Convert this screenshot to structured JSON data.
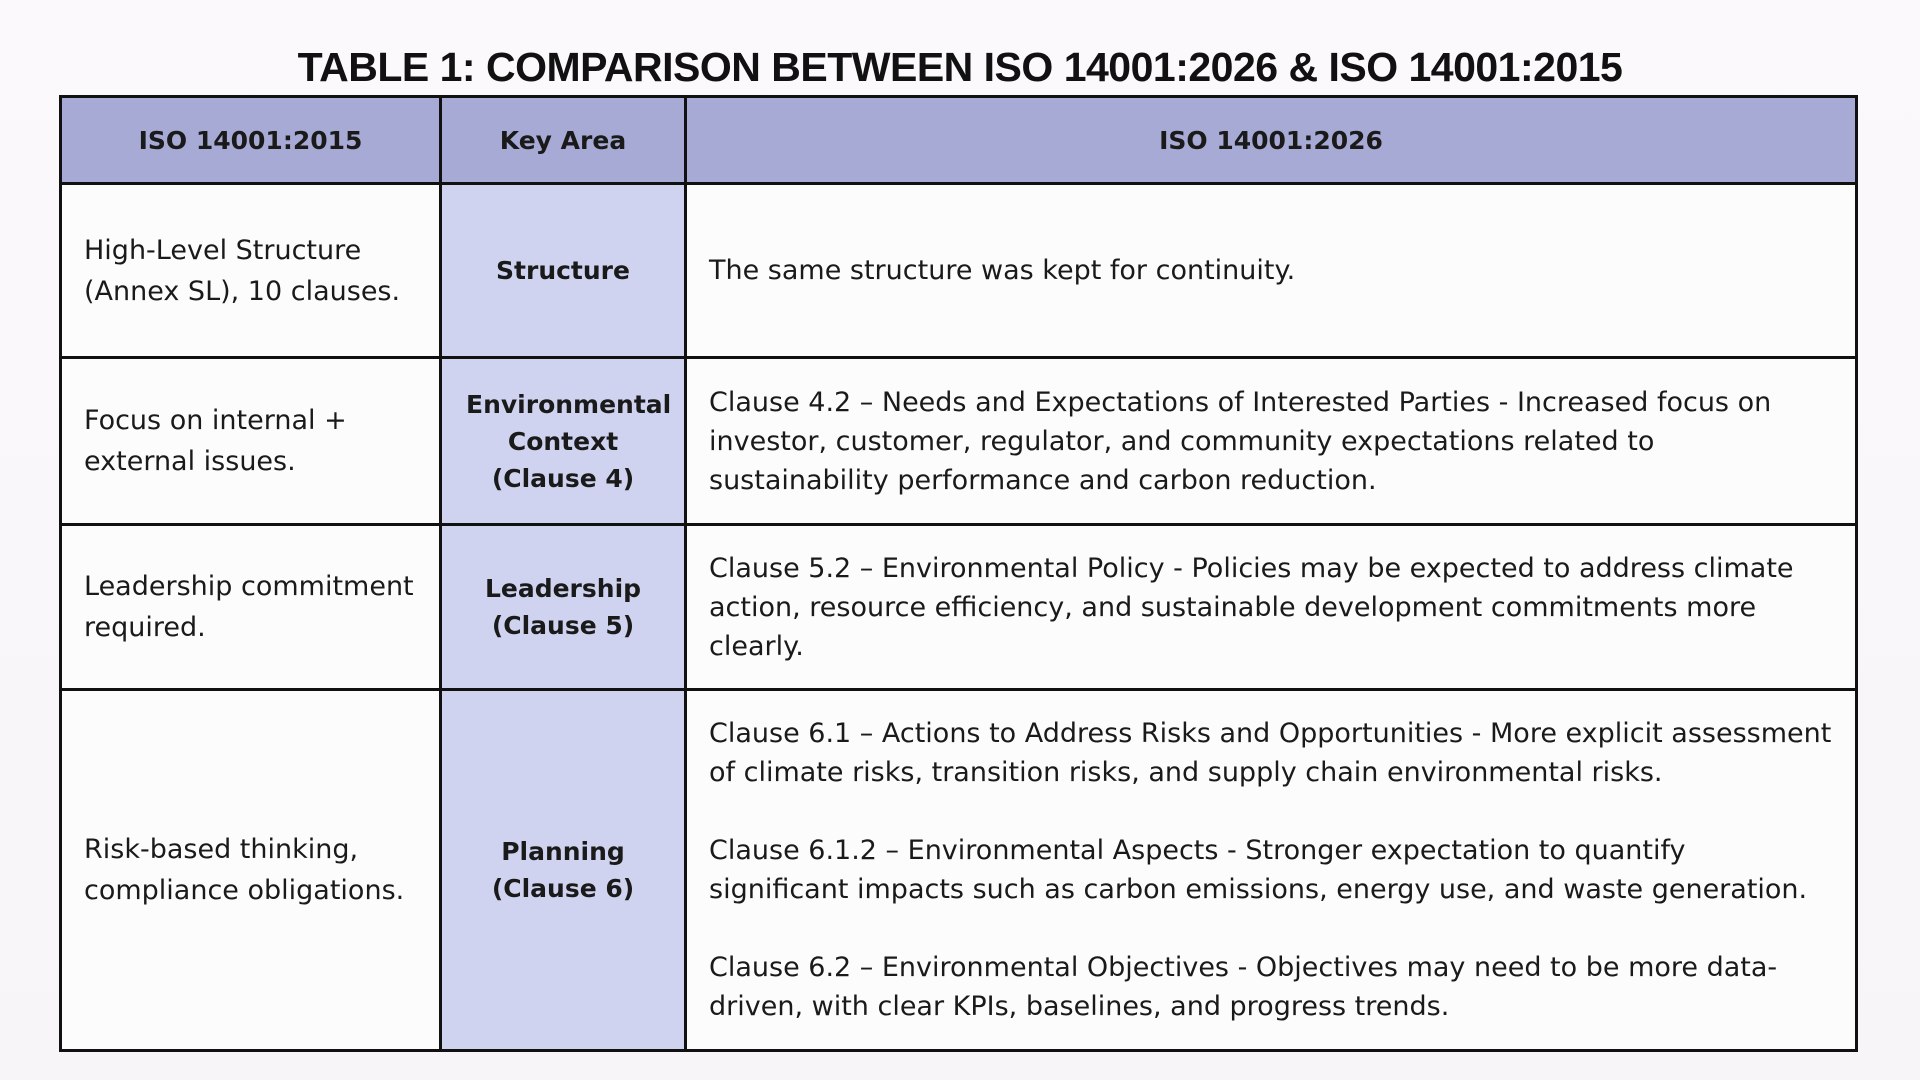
{
  "title": "TABLE 1: COMPARISON BETWEEN ISO 14001:2026 & ISO 14001:2015",
  "table": {
    "headers": [
      "ISO 14001:2015",
      "Key Area",
      "ISO 14001:2026"
    ],
    "rows": [
      [
        "High-Level Structure (Annex SL), 10 clauses.",
        "Structure",
        [
          "The same structure was kept for continuity."
        ]
      ],
      [
        "Focus on internal + external issues.",
        "Environmental Context (Clause 4)",
        [
          "Clause 4.2 – Needs and Expectations of Interested Parties - Increased focus on investor, customer, regulator, and community expectations related to sustainability performance and carbon reduction."
        ]
      ],
      [
        "Leadership commitment required.",
        "Leadership (Clause 5)",
        [
          "Clause 5.2 – Environmental Policy - Policies may be expected to address climate action, resource efficiency, and sustainable development commitments more clearly."
        ]
      ],
      [
        "Risk-based thinking, compliance obligations.",
        "Planning (Clause 6)",
        [
          "Clause 6.1 – Actions to Address Risks and Opportunities - More explicit assessment of climate risks, transition risks, and supply chain environmental risks.",
          "Clause 6.1.2 – Environmental Aspects - Stronger expectation to quantify significant impacts such as carbon emissions, energy use, and waste generation.",
          "Clause 6.2 – Environmental Objectives - Objectives may need to be more data-driven, with clear KPIs, baselines, and progress trends."
        ]
      ]
    ]
  }
}
